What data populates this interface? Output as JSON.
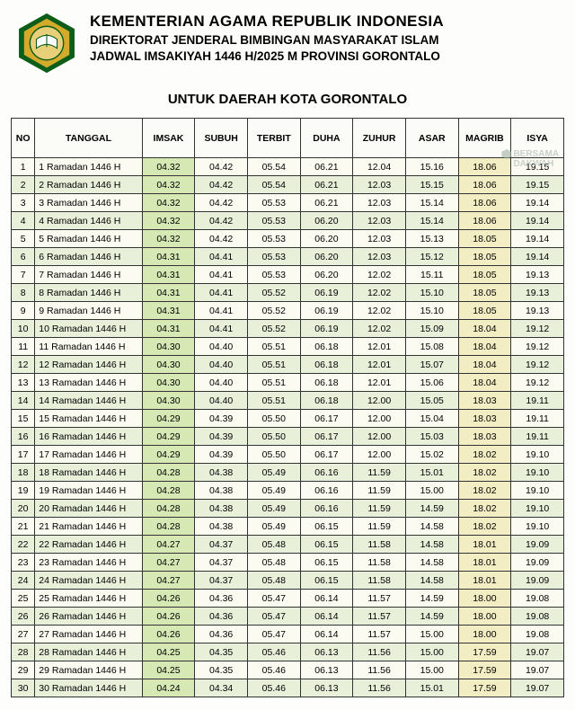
{
  "header": {
    "title_main": "KEMENTERIAN AGAMA REPUBLIK INDONESIA",
    "title_sub1": "DIREKTORAT JENDERAL BIMBINGAN MASYARAKAT ISLAM",
    "title_sub2": "JADWAL IMSAKIYAH 1446 H/2025 M PROVINSI GORONTALO",
    "region_title": "UNTUK DAERAH KOTA GORONTALO",
    "logo_colors": {
      "outer": "#0b5d1a",
      "mid": "#d4aa2a",
      "inner": "#e8d07a",
      "book": "#0b5d1a"
    }
  },
  "watermark": {
    "line1": "BERSAMA",
    "line2": "DAKWAH"
  },
  "table": {
    "columns": [
      "NO",
      "TANGGAL",
      "IMSAK",
      "SUBUH",
      "TERBIT",
      "DUHA",
      "ZUHUR",
      "ASAR",
      "MAGRIB",
      "ISYA"
    ],
    "highlight_green_cols": [
      2
    ],
    "highlight_yellow_cols": [
      8
    ],
    "rows": [
      {
        "no": 1,
        "date": "1 Ramadan 1446 H",
        "t": [
          "04.32",
          "04.42",
          "05.54",
          "06.21",
          "12.04",
          "15.16",
          "18.06",
          "19.15"
        ]
      },
      {
        "no": 2,
        "date": "2 Ramadan 1446 H",
        "t": [
          "04.32",
          "04.42",
          "05.54",
          "06.21",
          "12.03",
          "15.15",
          "18.06",
          "19.15"
        ]
      },
      {
        "no": 3,
        "date": "3 Ramadan 1446 H",
        "t": [
          "04.32",
          "04.42",
          "05.53",
          "06.21",
          "12.03",
          "15.14",
          "18.06",
          "19.14"
        ]
      },
      {
        "no": 4,
        "date": "4 Ramadan 1446 H",
        "t": [
          "04.32",
          "04.42",
          "05.53",
          "06.20",
          "12.03",
          "15.14",
          "18.06",
          "19.14"
        ]
      },
      {
        "no": 5,
        "date": "5 Ramadan 1446 H",
        "t": [
          "04.32",
          "04.42",
          "05.53",
          "06.20",
          "12.03",
          "15.13",
          "18.05",
          "19.14"
        ]
      },
      {
        "no": 6,
        "date": "6 Ramadan 1446 H",
        "t": [
          "04.31",
          "04.41",
          "05.53",
          "06.20",
          "12.03",
          "15.12",
          "18.05",
          "19.14"
        ]
      },
      {
        "no": 7,
        "date": "7 Ramadan 1446 H",
        "t": [
          "04.31",
          "04.41",
          "05.53",
          "06.20",
          "12.02",
          "15.11",
          "18.05",
          "19.13"
        ]
      },
      {
        "no": 8,
        "date": "8 Ramadan 1446 H",
        "t": [
          "04.31",
          "04.41",
          "05.52",
          "06.19",
          "12.02",
          "15.10",
          "18.05",
          "19.13"
        ]
      },
      {
        "no": 9,
        "date": "9 Ramadan 1446 H",
        "t": [
          "04.31",
          "04.41",
          "05.52",
          "06.19",
          "12.02",
          "15.10",
          "18.05",
          "19.13"
        ]
      },
      {
        "no": 10,
        "date": "10 Ramadan 1446 H",
        "t": [
          "04.31",
          "04.41",
          "05.52",
          "06.19",
          "12.02",
          "15.09",
          "18.04",
          "19.12"
        ]
      },
      {
        "no": 11,
        "date": "11 Ramadan 1446 H",
        "t": [
          "04.30",
          "04.40",
          "05.51",
          "06.18",
          "12.01",
          "15.08",
          "18.04",
          "19.12"
        ]
      },
      {
        "no": 12,
        "date": "12 Ramadan 1446 H",
        "t": [
          "04.30",
          "04.40",
          "05.51",
          "06.18",
          "12.01",
          "15.07",
          "18.04",
          "19.12"
        ]
      },
      {
        "no": 13,
        "date": "13 Ramadan 1446 H",
        "t": [
          "04.30",
          "04.40",
          "05.51",
          "06.18",
          "12.01",
          "15.06",
          "18.04",
          "19.12"
        ]
      },
      {
        "no": 14,
        "date": "14 Ramadan 1446 H",
        "t": [
          "04.30",
          "04.40",
          "05.51",
          "06.18",
          "12.00",
          "15.05",
          "18.03",
          "19.11"
        ]
      },
      {
        "no": 15,
        "date": "15 Ramadan 1446 H",
        "t": [
          "04.29",
          "04.39",
          "05.50",
          "06.17",
          "12.00",
          "15.04",
          "18.03",
          "19.11"
        ]
      },
      {
        "no": 16,
        "date": "16 Ramadan 1446 H",
        "t": [
          "04.29",
          "04.39",
          "05.50",
          "06.17",
          "12.00",
          "15.03",
          "18.03",
          "19.11"
        ]
      },
      {
        "no": 17,
        "date": "17 Ramadan 1446 H",
        "t": [
          "04.29",
          "04.39",
          "05.50",
          "06.17",
          "12.00",
          "15.02",
          "18.02",
          "19.10"
        ]
      },
      {
        "no": 18,
        "date": "18 Ramadan 1446 H",
        "t": [
          "04.28",
          "04.38",
          "05.49",
          "06.16",
          "11.59",
          "15.01",
          "18.02",
          "19.10"
        ]
      },
      {
        "no": 19,
        "date": "19 Ramadan 1446 H",
        "t": [
          "04.28",
          "04.38",
          "05.49",
          "06.16",
          "11.59",
          "15.00",
          "18.02",
          "19.10"
        ]
      },
      {
        "no": 20,
        "date": "20 Ramadan 1446 H",
        "t": [
          "04.28",
          "04.38",
          "05.49",
          "06.16",
          "11.59",
          "14.59",
          "18.02",
          "19.10"
        ]
      },
      {
        "no": 21,
        "date": "21 Ramadan 1446 H",
        "t": [
          "04.28",
          "04.38",
          "05.49",
          "06.15",
          "11.59",
          "14.58",
          "18.02",
          "19.10"
        ]
      },
      {
        "no": 22,
        "date": "22 Ramadan 1446 H",
        "t": [
          "04.27",
          "04.37",
          "05.48",
          "06.15",
          "11.58",
          "14.58",
          "18.01",
          "19.09"
        ]
      },
      {
        "no": 23,
        "date": "23 Ramadan 1446 H",
        "t": [
          "04.27",
          "04.37",
          "05.48",
          "06.15",
          "11.58",
          "14.58",
          "18.01",
          "19.09"
        ]
      },
      {
        "no": 24,
        "date": "24 Ramadan 1446 H",
        "t": [
          "04.27",
          "04.37",
          "05.48",
          "06.15",
          "11.58",
          "14.58",
          "18.01",
          "19.09"
        ]
      },
      {
        "no": 25,
        "date": "25 Ramadan 1446 H",
        "t": [
          "04.26",
          "04.36",
          "05.47",
          "06.14",
          "11.57",
          "14.59",
          "18.00",
          "19.08"
        ]
      },
      {
        "no": 26,
        "date": "26 Ramadan 1446 H",
        "t": [
          "04.26",
          "04.36",
          "05.47",
          "06.14",
          "11.57",
          "14.59",
          "18.00",
          "19.08"
        ]
      },
      {
        "no": 27,
        "date": "27 Ramadan 1446 H",
        "t": [
          "04.26",
          "04.36",
          "05.47",
          "06.14",
          "11.57",
          "15.00",
          "18.00",
          "19.08"
        ]
      },
      {
        "no": 28,
        "date": "28 Ramadan 1446 H",
        "t": [
          "04.25",
          "04.35",
          "05.46",
          "06.13",
          "11.56",
          "15.00",
          "17.59",
          "19.07"
        ]
      },
      {
        "no": 29,
        "date": "29 Ramadan 1446 H",
        "t": [
          "04.25",
          "04.35",
          "05.46",
          "06.13",
          "11.56",
          "15.00",
          "17.59",
          "19.07"
        ]
      },
      {
        "no": 30,
        "date": "30 Ramadan 1446 H",
        "t": [
          "04.24",
          "04.34",
          "05.46",
          "06.13",
          "11.56",
          "15.01",
          "17.59",
          "19.07"
        ]
      }
    ]
  }
}
